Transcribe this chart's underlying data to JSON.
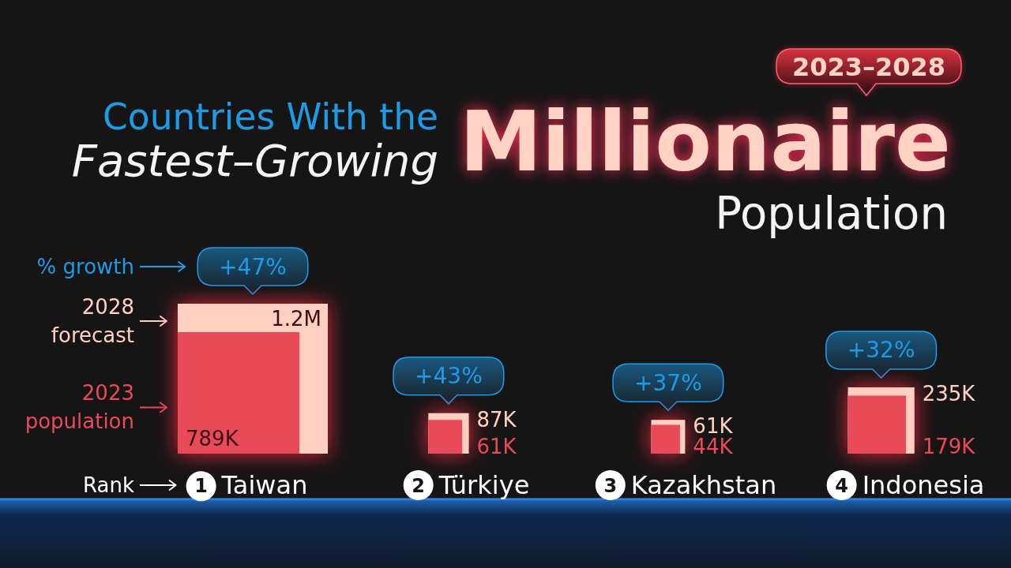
{
  "chart_data": {
    "type": "other",
    "title": "Countries With the Fastest–Growing Millionaire Population",
    "subtitle": "2023–2028",
    "categories": [
      "Taiwan",
      "Türkiye",
      "Kazakhstan",
      "Indonesia"
    ],
    "series": [
      {
        "name": "2023 population",
        "color": "#e84a58",
        "values": [
          789000,
          61000,
          44000,
          179000
        ],
        "value_labels": [
          "789K",
          "61K",
          "44K",
          "179K"
        ]
      },
      {
        "name": "2028 forecast",
        "color": "#ffd0c0",
        "values": [
          1200000,
          87000,
          61000,
          235000
        ],
        "value_labels": [
          "1.2M",
          "87K",
          "61K",
          "235K"
        ]
      },
      {
        "name": "% growth",
        "color": "#1e9be8",
        "values": [
          47,
          43,
          37,
          32
        ],
        "value_labels": [
          "+47%",
          "+43%",
          "+37%",
          "+32%"
        ]
      },
      {
        "name": "Rank",
        "color": "#ffffff",
        "values": [
          1,
          2,
          3,
          4
        ],
        "value_labels": [
          "1",
          "2",
          "3",
          "4"
        ]
      }
    ],
    "legend": "left"
  }
}
